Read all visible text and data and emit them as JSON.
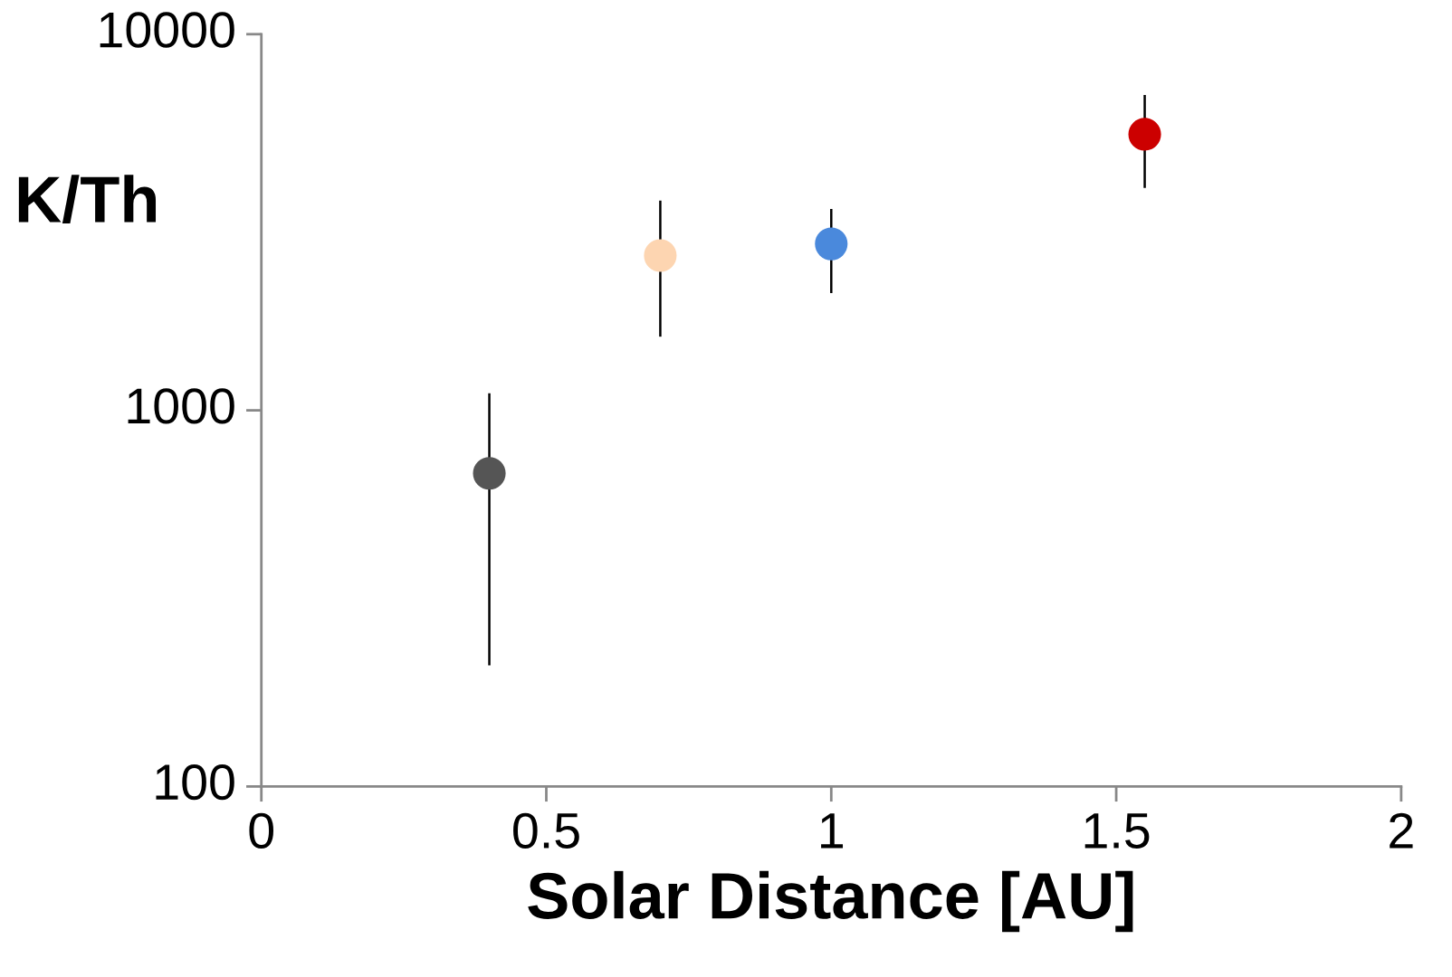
{
  "chart_data": {
    "type": "scatter",
    "xlabel": "Solar Distance [AU]",
    "ylabel": "K/Th",
    "x": [
      0.4,
      0.7,
      1.0,
      1.55
    ],
    "values": [
      680,
      2580,
      2770,
      5420
    ],
    "colors": [
      "#555555",
      "#fdd5b1",
      "#4a89dc",
      "#cc0000"
    ],
    "errors": [
      [
        210,
        1110
      ],
      [
        1570,
        3610
      ],
      [
        2050,
        3430
      ],
      [
        3900,
        6890
      ]
    ],
    "log": "y",
    "xlim": [
      0,
      2
    ],
    "xticks": [
      0,
      0.5,
      1,
      1.5,
      2
    ],
    "ylim": [
      100,
      10000
    ],
    "yticks": [
      100,
      1000,
      10000
    ],
    "grid": false,
    "legend": false,
    "marker": "circle"
  }
}
